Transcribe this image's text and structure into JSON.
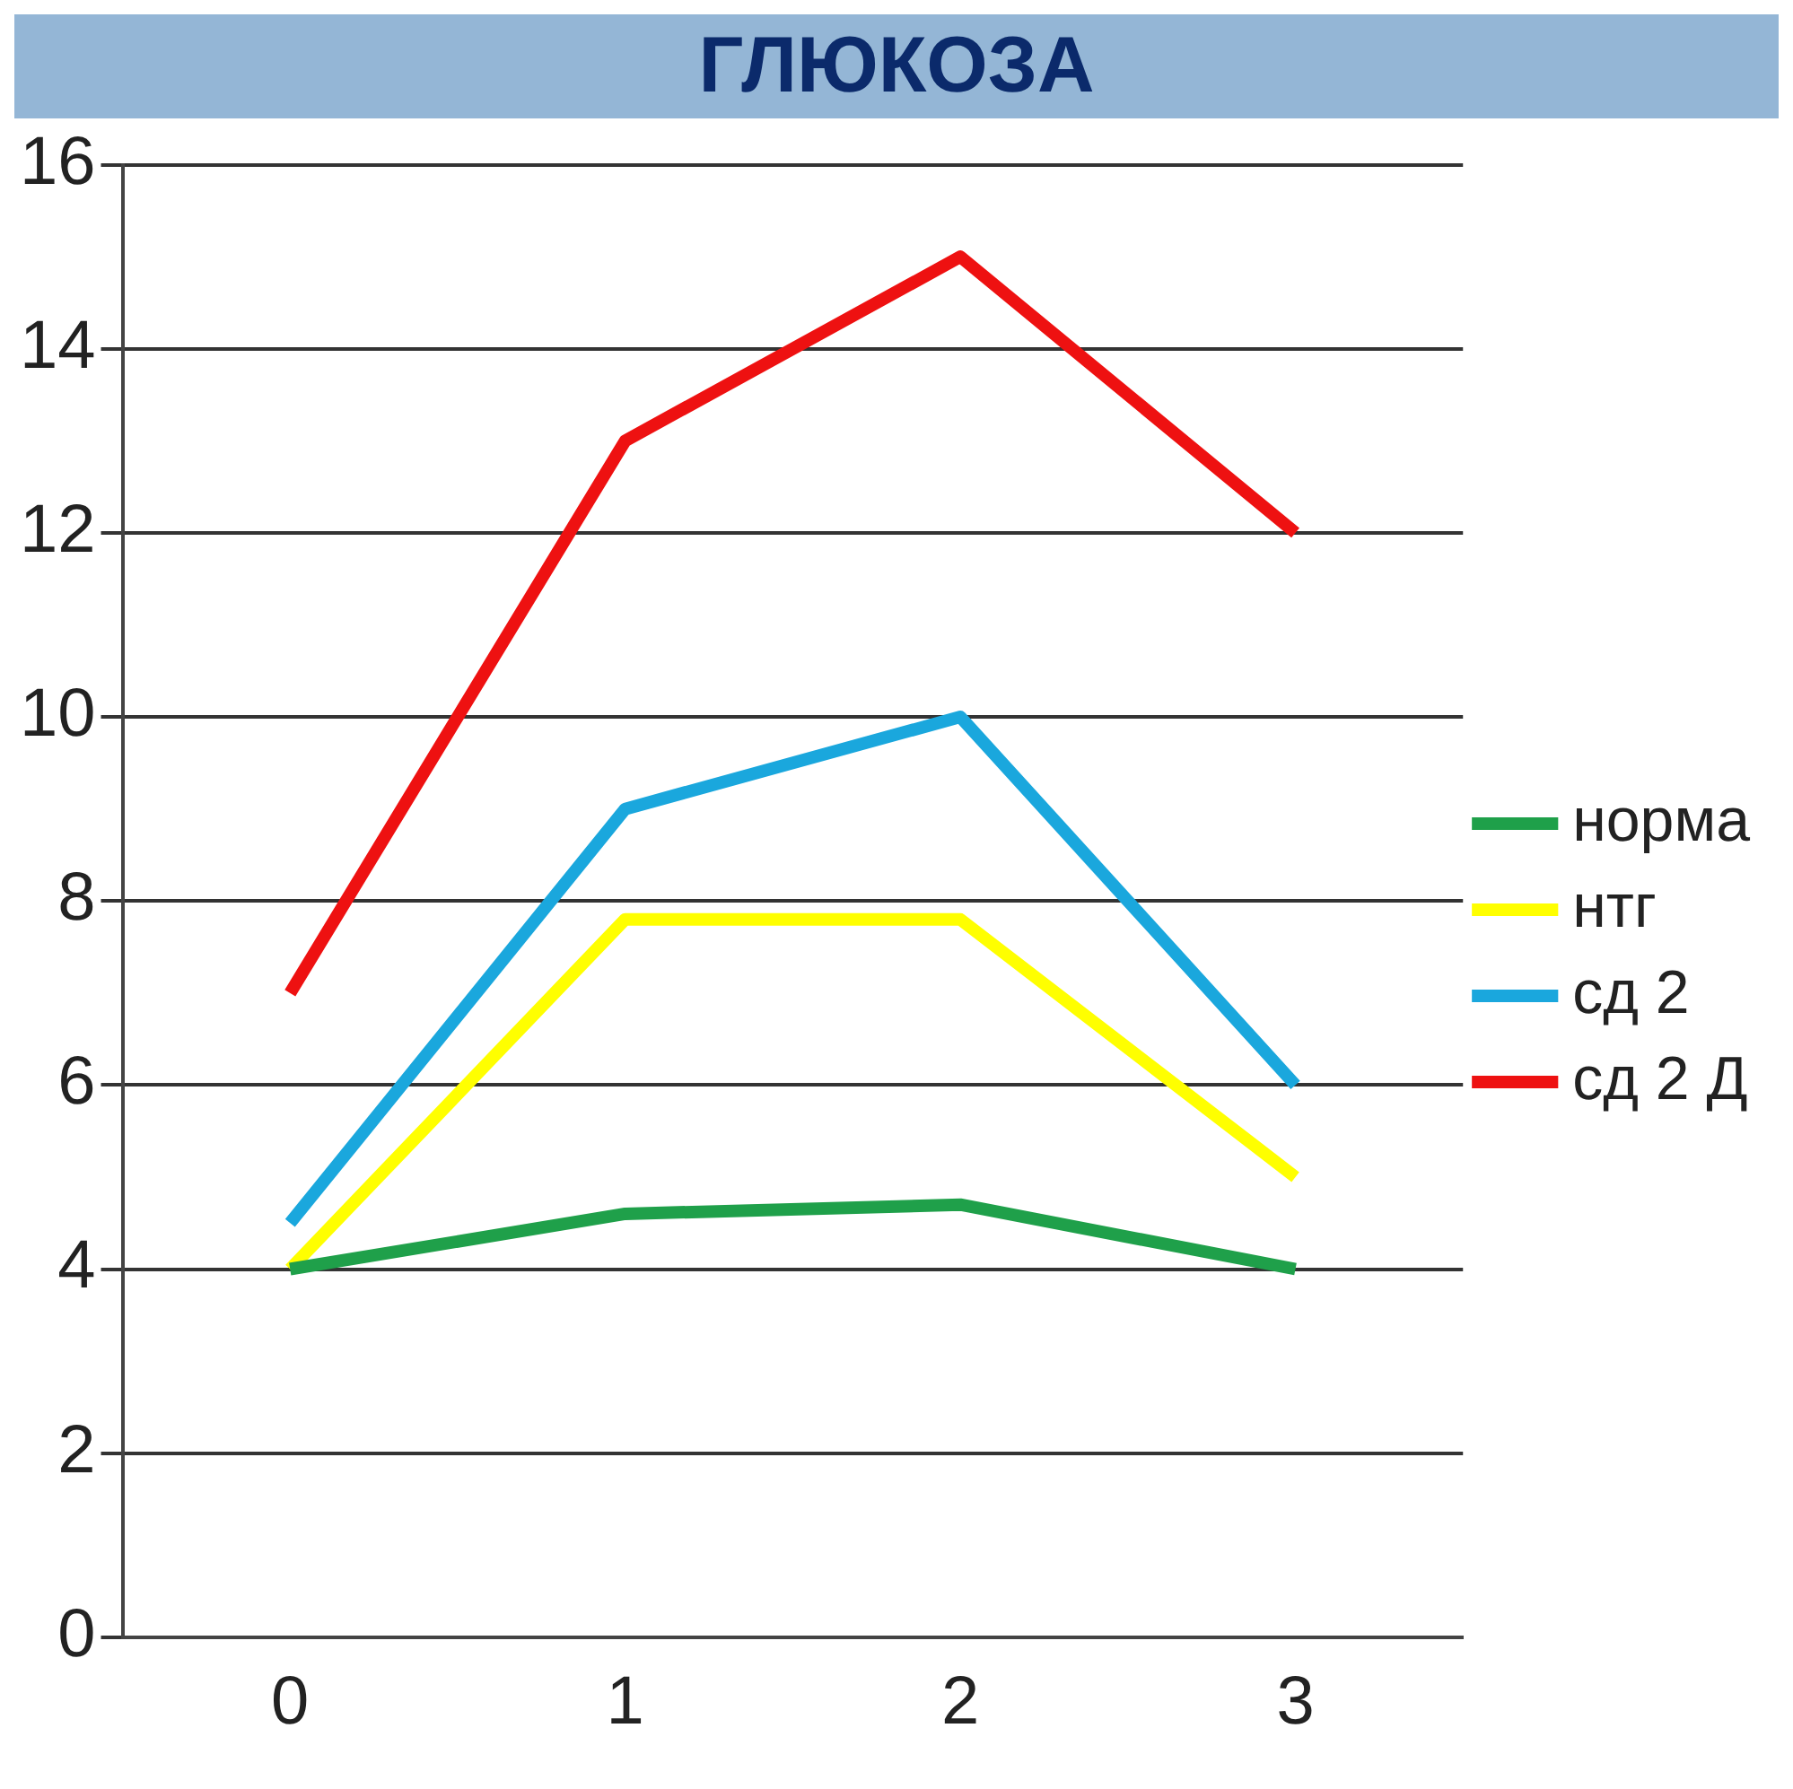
{
  "chart_data": {
    "type": "line",
    "title": "ГЛЮКОЗА",
    "categories": [
      "0",
      "1",
      "2",
      "3"
    ],
    "series": [
      {
        "name": "норма",
        "color": "#1fa04a",
        "values": [
          4,
          4.6,
          4.7,
          4
        ]
      },
      {
        "name": "нтг",
        "color": "#ffff00",
        "values": [
          4,
          7.8,
          7.8,
          5
        ]
      },
      {
        "name": "сд 2",
        "color": "#1aa7dd",
        "values": [
          4.5,
          9,
          10,
          6
        ]
      },
      {
        "name": "сд 2 Д",
        "color": "#ee1111",
        "values": [
          7,
          13,
          15,
          12
        ]
      }
    ],
    "ylim": [
      0,
      16
    ],
    "yticks": [
      0,
      2,
      4,
      6,
      8,
      10,
      12,
      14,
      16
    ],
    "grid": "y",
    "legend": "right",
    "marker": "none",
    "line_style": "solid"
  }
}
